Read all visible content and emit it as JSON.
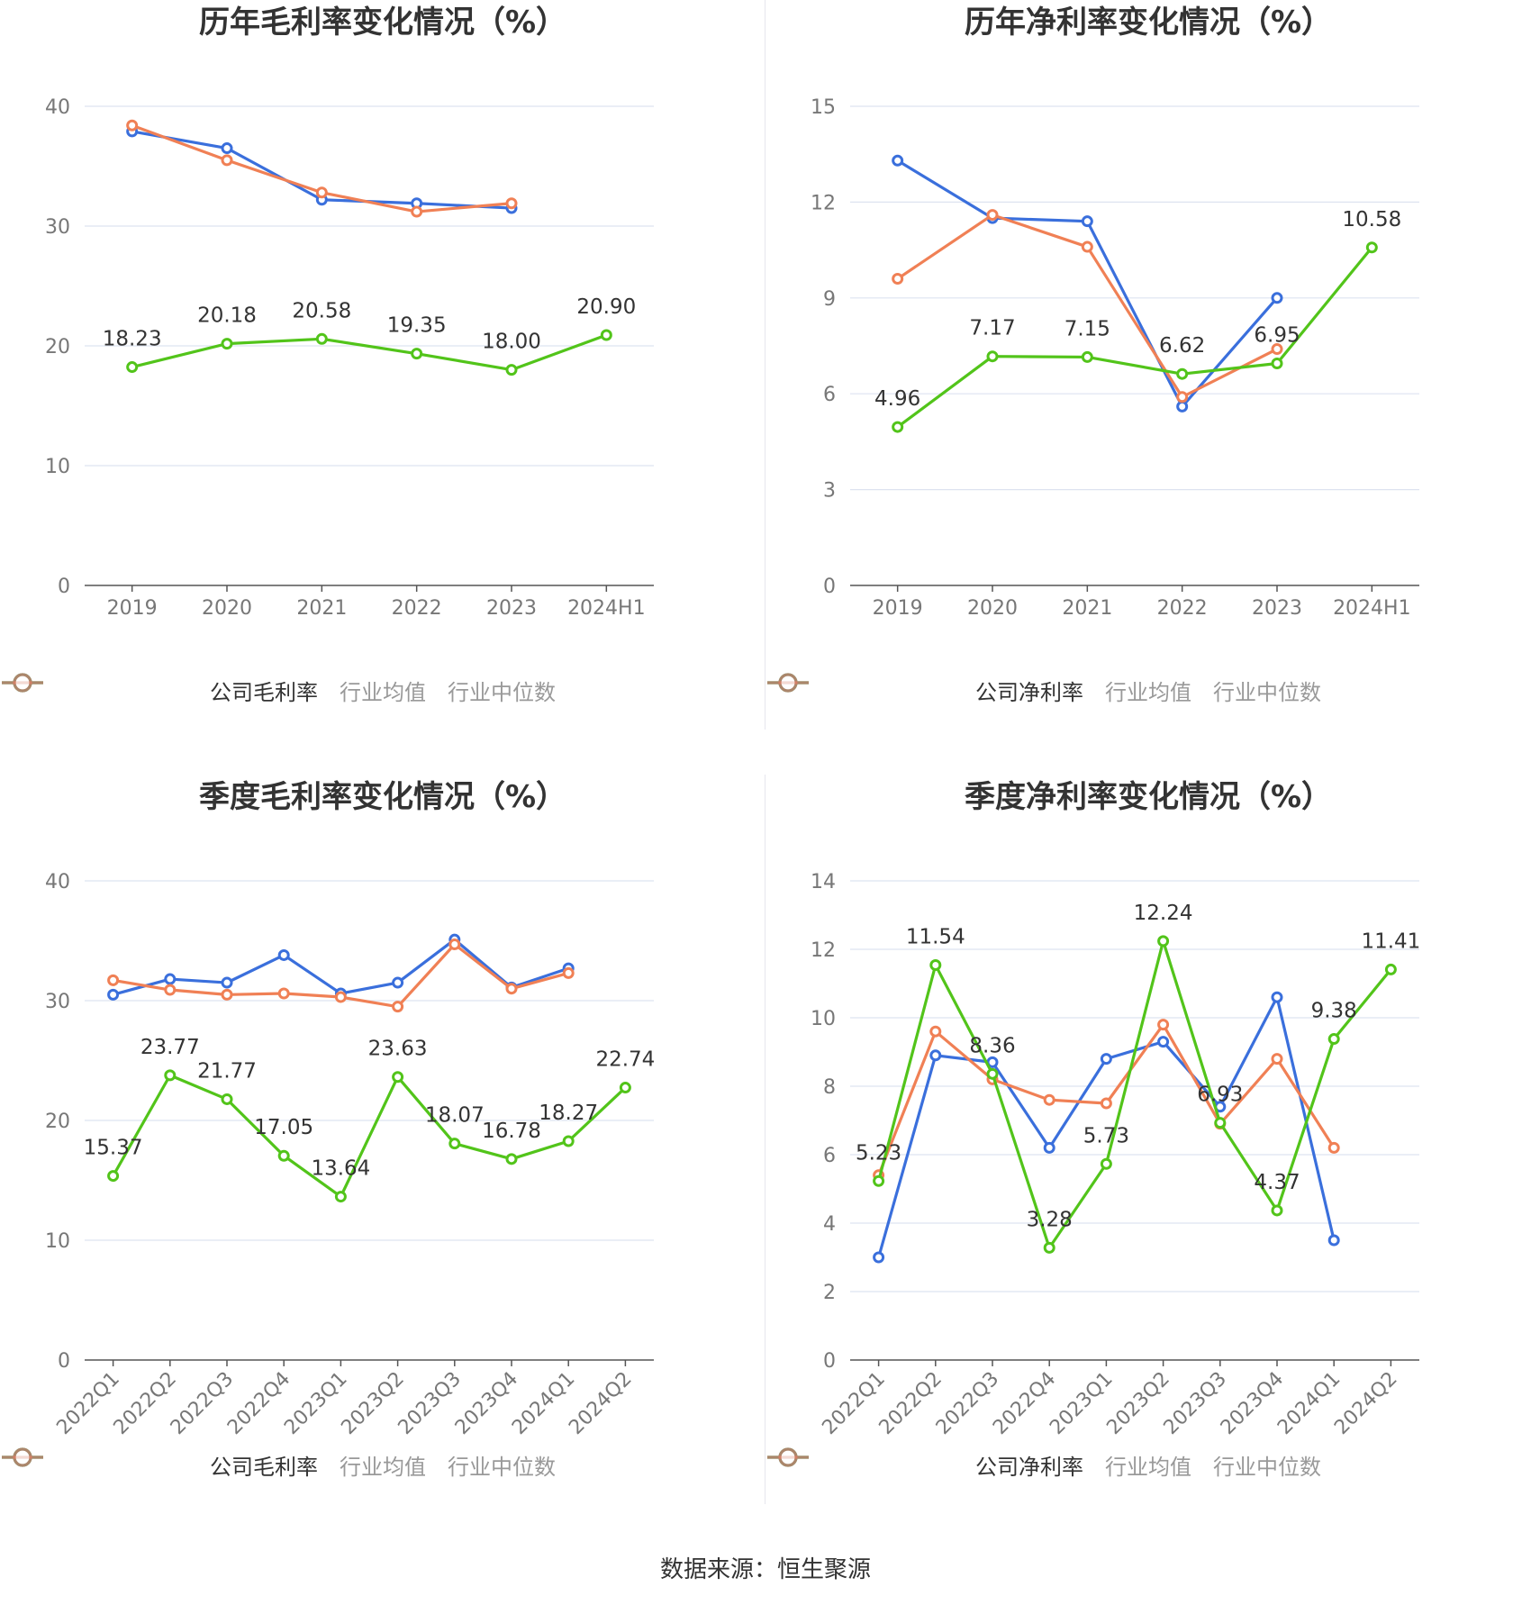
{
  "source_text": "数据来源：恒生聚源",
  "colors": {
    "company": "#52c41a",
    "average": "#3a6fdc",
    "median": "#f08055",
    "grid": "#dde3f0",
    "axis": "#666666"
  },
  "chart_data": [
    {
      "type": "line",
      "title": "历年毛利率变化情况（%）",
      "categories": [
        "2019",
        "2020",
        "2021",
        "2022",
        "2023",
        "2024H1"
      ],
      "yticks": [
        0,
        10,
        20,
        30,
        40
      ],
      "ylim": [
        0,
        40
      ],
      "rotate_x": false,
      "series": [
        {
          "name": "公司毛利率",
          "key": "company",
          "values": [
            18.23,
            20.18,
            20.58,
            19.35,
            18.0,
            20.9
          ],
          "labels": [
            "18.23",
            "20.18",
            "20.58",
            "19.35",
            "18.00",
            "20.90"
          ]
        },
        {
          "name": "行业均值",
          "key": "average",
          "values": [
            37.9,
            36.5,
            32.2,
            31.9,
            31.5,
            null
          ]
        },
        {
          "name": "行业中位数",
          "key": "median",
          "values": [
            38.4,
            35.5,
            32.8,
            31.2,
            31.9,
            null
          ]
        }
      ]
    },
    {
      "type": "line",
      "title": "历年净利率变化情况（%）",
      "categories": [
        "2019",
        "2020",
        "2021",
        "2022",
        "2023",
        "2024H1"
      ],
      "yticks": [
        0,
        3,
        6,
        9,
        12,
        15
      ],
      "ylim": [
        0,
        15
      ],
      "rotate_x": false,
      "series": [
        {
          "name": "公司净利率",
          "key": "company",
          "values": [
            4.96,
            7.17,
            7.15,
            6.62,
            6.95,
            10.58
          ],
          "labels": [
            "4.96",
            "7.17",
            "7.15",
            "6.62",
            "6.95",
            "10.58"
          ]
        },
        {
          "name": "行业均值",
          "key": "average",
          "values": [
            13.3,
            11.5,
            11.4,
            5.6,
            9.0,
            null
          ]
        },
        {
          "name": "行业中位数",
          "key": "median",
          "values": [
            9.6,
            11.6,
            10.6,
            5.9,
            7.4,
            null
          ]
        }
      ]
    },
    {
      "type": "line",
      "title": "季度毛利率变化情况（%）",
      "categories": [
        "2022Q1",
        "2022Q2",
        "2022Q3",
        "2022Q4",
        "2023Q1",
        "2023Q2",
        "2023Q3",
        "2023Q4",
        "2024Q1",
        "2024Q2"
      ],
      "yticks": [
        0,
        10,
        20,
        30,
        40
      ],
      "ylim": [
        0,
        40
      ],
      "rotate_x": true,
      "series": [
        {
          "name": "公司毛利率",
          "key": "company",
          "values": [
            15.37,
            23.77,
            21.77,
            17.05,
            13.64,
            23.63,
            18.07,
            16.78,
            18.27,
            22.74
          ],
          "labels": [
            "15.37",
            "23.77",
            "21.77",
            "17.05",
            "13.64",
            "23.63",
            "18.07",
            "16.78",
            "18.27",
            "22.74"
          ]
        },
        {
          "name": "行业均值",
          "key": "average",
          "values": [
            30.5,
            31.8,
            31.5,
            33.8,
            30.6,
            31.5,
            35.1,
            31.1,
            32.7,
            null
          ]
        },
        {
          "name": "行业中位数",
          "key": "median",
          "values": [
            31.7,
            30.9,
            30.5,
            30.6,
            30.3,
            29.5,
            34.7,
            31.0,
            32.3,
            null
          ]
        }
      ]
    },
    {
      "type": "line",
      "title": "季度净利率变化情况（%）",
      "categories": [
        "2022Q1",
        "2022Q2",
        "2022Q3",
        "2022Q4",
        "2023Q1",
        "2023Q2",
        "2023Q3",
        "2023Q4",
        "2024Q1",
        "2024Q2"
      ],
      "yticks": [
        0,
        2,
        4,
        6,
        8,
        10,
        12,
        14
      ],
      "ylim": [
        0,
        14
      ],
      "rotate_x": true,
      "series": [
        {
          "name": "公司净利率",
          "key": "company",
          "values": [
            5.23,
            11.54,
            8.36,
            3.28,
            5.73,
            12.24,
            6.93,
            4.37,
            9.38,
            11.41
          ],
          "labels": [
            "5.23",
            "11.54",
            "8.36",
            "3.28",
            "5.73",
            "12.24",
            "6.93",
            "4.37",
            "9.38",
            "11.41"
          ]
        },
        {
          "name": "行业均值",
          "key": "average",
          "values": [
            3.0,
            8.9,
            8.7,
            6.2,
            8.8,
            9.3,
            7.4,
            10.6,
            3.5,
            null
          ]
        },
        {
          "name": "行业中位数",
          "key": "median",
          "values": [
            5.4,
            9.6,
            8.2,
            7.6,
            7.5,
            9.8,
            6.9,
            8.8,
            6.2,
            null
          ]
        }
      ]
    }
  ]
}
